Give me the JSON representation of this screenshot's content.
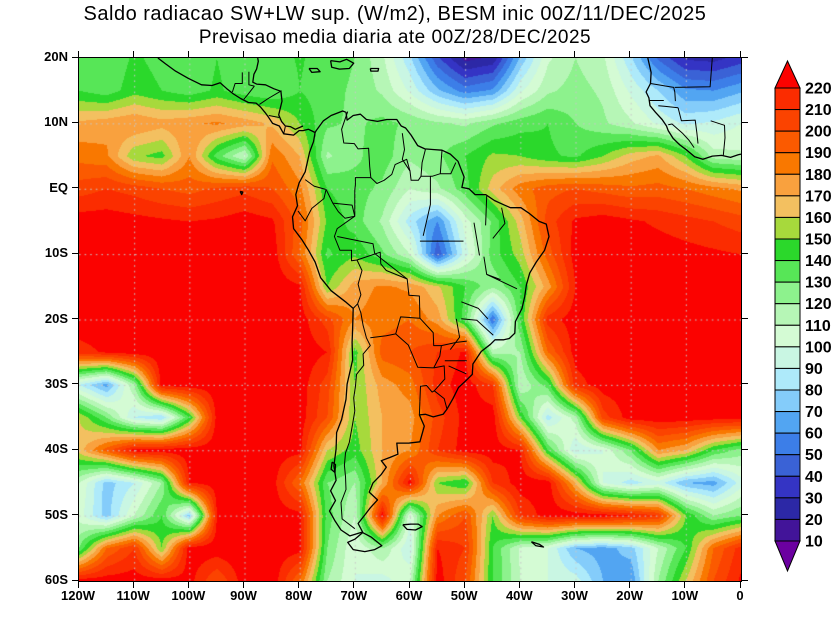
{
  "title": {
    "line1": "Saldo radiacao SW+LW sup. (W/m2), BESM inic 00Z/11/DEC/2025",
    "line2": "Previsao media diaria ate 00Z/28/DEC/2025"
  },
  "chart_data": {
    "type": "heatmap",
    "title": "Saldo radiacao SW+LW sup. (W/m2), BESM inic 00Z/11/DEC/2025 — Previsao media diaria ate 00Z/28/DEC/2025",
    "units": "W/m2",
    "lon_range": [
      -120,
      0
    ],
    "lat_range": [
      -60,
      20
    ],
    "grid_step_deg": 5,
    "grid_dotted": true,
    "lons": [
      -120,
      -115,
      -110,
      -105,
      -100,
      -95,
      -90,
      -85,
      -80,
      -75,
      -70,
      -65,
      -60,
      -55,
      -50,
      -45,
      -40,
      -35,
      -30,
      -25,
      -20,
      -15,
      -10,
      -5,
      0
    ],
    "lats": [
      20,
      15,
      10,
      5,
      0,
      -5,
      -10,
      -15,
      -20,
      -25,
      -30,
      -35,
      -40,
      -45,
      -50,
      -55,
      -60
    ],
    "values": [
      [
        136,
        130,
        142,
        136,
        130,
        140,
        132,
        136,
        141,
        136,
        130,
        112,
        82,
        42,
        16,
        22,
        72,
        108,
        120,
        112,
        82,
        48,
        28,
        26,
        34
      ],
      [
        140,
        134,
        146,
        140,
        134,
        142,
        134,
        130,
        140,
        134,
        128,
        118,
        98,
        72,
        55,
        62,
        98,
        118,
        124,
        118,
        98,
        80,
        62,
        60,
        68
      ],
      [
        172,
        176,
        180,
        174,
        178,
        182,
        176,
        168,
        150,
        132,
        128,
        133,
        128,
        122,
        118,
        128,
        136,
        140,
        130,
        122,
        112,
        98,
        88,
        92,
        100
      ],
      [
        186,
        182,
        152,
        146,
        180,
        135,
        108,
        188,
        170,
        118,
        128,
        135,
        122,
        128,
        140,
        152,
        150,
        142,
        138,
        150,
        165,
        172,
        150,
        115,
        112
      ],
      [
        205,
        210,
        206,
        200,
        196,
        202,
        207,
        200,
        183,
        140,
        134,
        128,
        110,
        118,
        136,
        165,
        186,
        196,
        200,
        196,
        192,
        194,
        190,
        184,
        178
      ],
      [
        226,
        226,
        224,
        222,
        220,
        222,
        226,
        222,
        195,
        148,
        135,
        118,
        85,
        60,
        105,
        132,
        165,
        205,
        222,
        226,
        222,
        218,
        214,
        210,
        205
      ],
      [
        230,
        229,
        228,
        227,
        227,
        228,
        229,
        227,
        190,
        138,
        148,
        132,
        110,
        42,
        95,
        135,
        155,
        195,
        225,
        228,
        227,
        226,
        224,
        222,
        220
      ],
      [
        229,
        228,
        227,
        227,
        227,
        226,
        227,
        228,
        222,
        150,
        175,
        182,
        178,
        162,
        140,
        122,
        140,
        175,
        220,
        227,
        228,
        227,
        226,
        225,
        223
      ],
      [
        228,
        228,
        228,
        227,
        227,
        226,
        227,
        228,
        226,
        205,
        180,
        185,
        190,
        175,
        135,
        50,
        140,
        215,
        226,
        228,
        228,
        227,
        226,
        225,
        224
      ],
      [
        215,
        222,
        226,
        227,
        228,
        228,
        228,
        228,
        227,
        220,
        145,
        195,
        200,
        210,
        222,
        115,
        120,
        190,
        225,
        227,
        228,
        228,
        227,
        226,
        225
      ],
      [
        90,
        65,
        120,
        225,
        227,
        227,
        228,
        227,
        226,
        205,
        150,
        175,
        185,
        215,
        226,
        210,
        110,
        135,
        215,
        226,
        227,
        228,
        227,
        226,
        225
      ],
      [
        160,
        130,
        90,
        80,
        140,
        224,
        227,
        227,
        226,
        200,
        150,
        170,
        175,
        205,
        224,
        226,
        150,
        85,
        115,
        205,
        226,
        227,
        226,
        225,
        224
      ],
      [
        165,
        195,
        225,
        226,
        227,
        227,
        226,
        226,
        224,
        160,
        145,
        170,
        180,
        210,
        225,
        226,
        220,
        140,
        90,
        100,
        130,
        180,
        170,
        140,
        125
      ],
      [
        110,
        75,
        90,
        120,
        220,
        226,
        226,
        225,
        190,
        130,
        120,
        170,
        225,
        150,
        140,
        210,
        226,
        226,
        170,
        100,
        85,
        95,
        70,
        65,
        95
      ],
      [
        105,
        75,
        110,
        140,
        75,
        220,
        227,
        226,
        224,
        135,
        110,
        226,
        100,
        180,
        200,
        150,
        210,
        226,
        226,
        225,
        220,
        210,
        150,
        120,
        130
      ],
      [
        130,
        190,
        210,
        150,
        226,
        227,
        228,
        226,
        225,
        130,
        100,
        120,
        90,
        220,
        210,
        140,
        108,
        100,
        70,
        65,
        75,
        110,
        140,
        190,
        215
      ],
      [
        226,
        226,
        226,
        226,
        224,
        200,
        226,
        228,
        190,
        120,
        100,
        95,
        110,
        226,
        200,
        140,
        110,
        100,
        95,
        70,
        60,
        120,
        160,
        200,
        222
      ]
    ],
    "x_ticks": [
      {
        "label": "120W",
        "lon": -120
      },
      {
        "label": "110W",
        "lon": -110
      },
      {
        "label": "100W",
        "lon": -100
      },
      {
        "label": "90W",
        "lon": -90
      },
      {
        "label": "80W",
        "lon": -80
      },
      {
        "label": "70W",
        "lon": -70
      },
      {
        "label": "60W",
        "lon": -60
      },
      {
        "label": "50W",
        "lon": -50
      },
      {
        "label": "40W",
        "lon": -40
      },
      {
        "label": "30W",
        "lon": -30
      },
      {
        "label": "20W",
        "lon": -20
      },
      {
        "label": "10W",
        "lon": -10
      },
      {
        "label": "0",
        "lon": 0
      }
    ],
    "y_ticks": [
      {
        "label": "20N",
        "lat": 20
      },
      {
        "label": "10N",
        "lat": 10
      },
      {
        "label": "EQ",
        "lat": 0
      },
      {
        "label": "10S",
        "lat": -10
      },
      {
        "label": "20S",
        "lat": -20
      },
      {
        "label": "30S",
        "lat": -30
      },
      {
        "label": "40S",
        "lat": -40
      },
      {
        "label": "50S",
        "lat": -50
      },
      {
        "label": "60S",
        "lat": -60
      }
    ],
    "colorbar": {
      "position": "right",
      "labels_top_to_bottom": [
        220,
        210,
        200,
        190,
        180,
        170,
        160,
        150,
        140,
        130,
        120,
        110,
        100,
        90,
        80,
        70,
        60,
        50,
        40,
        30,
        20,
        10
      ],
      "colors_low_to_high": [
        "#6b00a0",
        "#421499",
        "#2c28a6",
        "#3434c4",
        "#3a62d6",
        "#3c7ee8",
        "#52a5f2",
        "#84ccfa",
        "#aeeafa",
        "#c9f6e3",
        "#d4fbd4",
        "#b6f6b6",
        "#8df28d",
        "#57e657",
        "#2bd82b",
        "#a7d93c",
        "#f3c060",
        "#f9a13e",
        "#f97800",
        "#fb5a00",
        "#fb4300",
        "#fb2c00",
        "#fb0200"
      ],
      "arrow_over": true,
      "arrow_under": true
    },
    "gridline_color": "#c8c8c8",
    "coastline_color": "#000000"
  }
}
